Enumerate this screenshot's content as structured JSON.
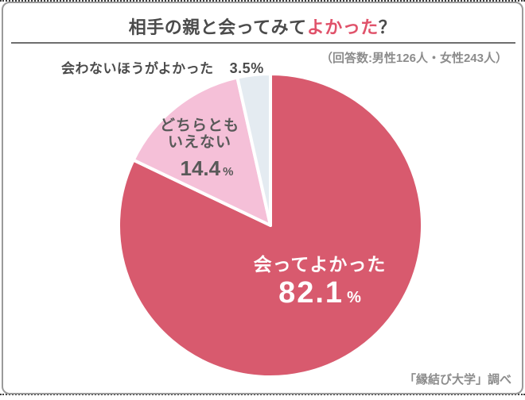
{
  "header": {
    "title": {
      "prefix": "相手の親と会ってみて",
      "highlight": "よかった",
      "suffix": "？"
    },
    "respondents_note": "（回答数:男性126人・女性243人）"
  },
  "chart_data": {
    "type": "pie",
    "title": "相手の親と会ってみてよかった？",
    "start_angle_deg": 0,
    "direction": "clockwise",
    "unit": "%",
    "legend_position": "labels-on-chart",
    "segments": [
      {
        "label": "会ってよかった",
        "value": 82.1,
        "color": "#d85a6e",
        "text_color": "#ffffff"
      },
      {
        "label": "どちらともいえない",
        "value": 14.4,
        "color": "#f5c0d8",
        "text_color": "#595959"
      },
      {
        "label": "会わないほうがよかった",
        "value": 3.5,
        "color": "#e4ebf1",
        "text_color": "#4b4b4b"
      }
    ]
  },
  "labels": {
    "neutral_label_lines": [
      "どちらとも",
      "いえない"
    ]
  },
  "footer": {
    "source": "「縁結び大学」調べ"
  },
  "colors": {
    "title_text": "#4b4b4b",
    "title_highlight": "#e0526a",
    "divider": "#6e6e6e",
    "note_text": "#8c8c8c",
    "slice_gap_stroke": "#ffffff",
    "card_border": "#9a9a9a",
    "dotted_rule": "#3c3c3c"
  }
}
